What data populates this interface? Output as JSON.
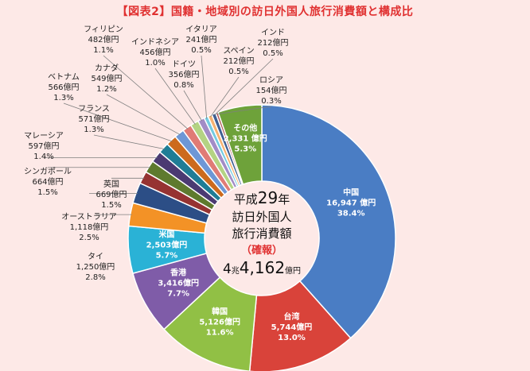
{
  "chart_data": {
    "type": "donut",
    "title": "【図表2】国籍・地域別の訪日外国人旅行消費額と構成比",
    "center": {
      "line1_pre": "平成",
      "line1_num": "29",
      "line1_post": "年",
      "line2": "訪日外国人",
      "line3": "旅行消費額",
      "line4": "（確報）",
      "total_a": "4",
      "total_b": "兆",
      "total_c": "4,162",
      "total_d": "億円"
    },
    "series": [
      {
        "name": "中国",
        "amount": "16,947 億円",
        "share": "38.4%",
        "value": 38.4,
        "color": "#4a7dc4"
      },
      {
        "name": "台湾",
        "amount": "5,744億円",
        "share": "13.0%",
        "value": 13.0,
        "color": "#d9433a"
      },
      {
        "name": "韓国",
        "amount": "5,126億円",
        "share": "11.6%",
        "value": 11.6,
        "color": "#91c045"
      },
      {
        "name": "香港",
        "amount": "3,416億円",
        "share": "7.7%",
        "value": 7.7,
        "color": "#7f5ca8"
      },
      {
        "name": "米国",
        "amount": "2,503億円",
        "share": "5.7%",
        "value": 5.7,
        "color": "#2ab2d6"
      },
      {
        "name": "タイ",
        "amount": "1,250億円",
        "share": "2.8%",
        "value": 2.8,
        "color": "#f39226"
      },
      {
        "name": "オーストラリア",
        "amount": "1,118億円",
        "share": "2.5%",
        "value": 2.5,
        "color": "#2c4e86"
      },
      {
        "name": "英国",
        "amount": "669億円",
        "share": "1.5%",
        "value": 1.5,
        "color": "#963332"
      },
      {
        "name": "シンガポール",
        "amount": "664億円",
        "share": "1.5%",
        "value": 1.5,
        "color": "#5e7a2e"
      },
      {
        "name": "マレーシア",
        "amount": "597億円",
        "share": "1.4%",
        "value": 1.4,
        "color": "#4b3a72"
      },
      {
        "name": "フランス",
        "amount": "571億円",
        "share": "1.3%",
        "value": 1.3,
        "color": "#1f7d96"
      },
      {
        "name": "ベトナム",
        "amount": "566億円",
        "share": "1.3%",
        "value": 1.3,
        "color": "#cc6a1d"
      },
      {
        "name": "カナダ",
        "amount": "549億円",
        "share": "1.2%",
        "value": 1.2,
        "color": "#6e97d6"
      },
      {
        "name": "フィリピン",
        "amount": "482億円",
        "share": "1.1%",
        "value": 1.1,
        "color": "#e07b76"
      },
      {
        "name": "インドネシア",
        "amount": "456億円",
        "share": "1.0%",
        "value": 1.0,
        "color": "#b4d383"
      },
      {
        "name": "ドイツ",
        "amount": "356億円",
        "share": "0.8%",
        "value": 0.8,
        "color": "#a28cc6"
      },
      {
        "name": "イタリア",
        "amount": "241億円",
        "share": "0.5%",
        "value": 0.5,
        "color": "#74cbe1"
      },
      {
        "name": "スペイン",
        "amount": "212億円",
        "share": "0.5%",
        "value": 0.5,
        "color": "#f6b272"
      },
      {
        "name": "インド",
        "amount": "212億円",
        "share": "0.5%",
        "value": 0.5,
        "color": "#3f5f93"
      },
      {
        "name": "ロシア",
        "amount": "154億円",
        "share": "0.3%",
        "value": 0.3,
        "color": "#b05a58"
      },
      {
        "name": "その他",
        "amount": "2,331 億円",
        "share": "5.3%",
        "value": 5.3,
        "color": "#6ea23a"
      }
    ]
  }
}
